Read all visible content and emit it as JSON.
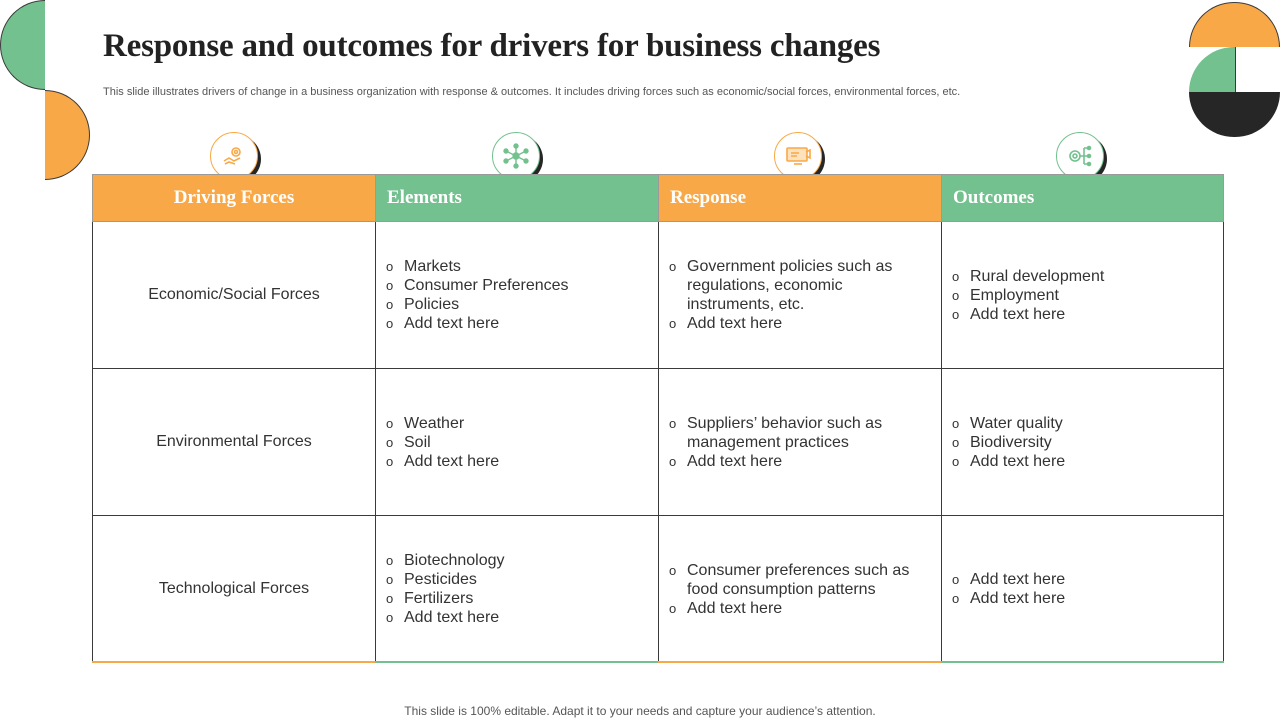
{
  "slide": {
    "title": "Response and outcomes for drivers for business changes",
    "subtitle": "This slide illustrates drivers of change in a business organization with response & outcomes. It includes driving forces such as economic/social forces, environmental forces, etc.",
    "footer": "This slide is 100% editable. Adapt it to your needs and capture your audience’s attention."
  },
  "colors": {
    "orange": "#f9a847",
    "green": "#72c18e",
    "dark": "#262626"
  },
  "icons": [
    "handshake-gear-icon",
    "network-nodes-icon",
    "monitor-presentation-icon",
    "target-hierarchy-icon"
  ],
  "table": {
    "headers": [
      "Driving Forces",
      "Elements",
      "Response",
      "Outcomes"
    ],
    "rows": [
      {
        "force": "Economic/Social Forces",
        "elements": [
          "Markets",
          "Consumer Preferences",
          "Policies",
          "Add text here"
        ],
        "response": [
          "Government policies such as regulations, economic instruments, etc.",
          "Add text here"
        ],
        "outcomes": [
          "Rural development",
          "Employment",
          "Add text here"
        ]
      },
      {
        "force": "Environmental Forces",
        "elements": [
          "Weather",
          "Soil",
          "Add text here"
        ],
        "response": [
          "Suppliers’ behavior such as management practices",
          "Add text here"
        ],
        "outcomes": [
          "Water quality",
          "Biodiversity",
          "Add text here"
        ]
      },
      {
        "force": "Technological Forces",
        "elements": [
          "Biotechnology",
          "Pesticides",
          "Fertilizers",
          "Add text here"
        ],
        "response": [
          "Consumer preferences such as food consumption patterns",
          "Add text here"
        ],
        "outcomes": [
          "Add text here",
          "Add text here"
        ]
      }
    ]
  }
}
